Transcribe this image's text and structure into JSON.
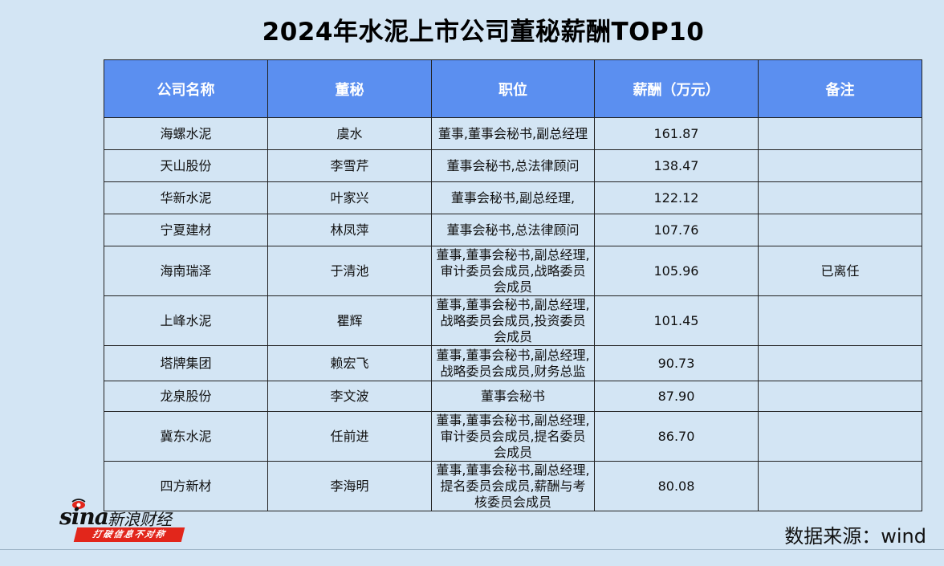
{
  "title": "2024年水泥上市公司董秘薪酬TOP10",
  "table": {
    "headers": [
      "公司名称",
      "董秘",
      "职位",
      "薪酬（万元）",
      "备注"
    ],
    "rows": [
      {
        "company": "海螺水泥",
        "secretary": "虞水",
        "position": [
          "董事,董事会秘书,副总经理"
        ],
        "salary": "161.87",
        "note": ""
      },
      {
        "company": "天山股份",
        "secretary": "李雪芹",
        "position": [
          "董事会秘书,总法律顾问"
        ],
        "salary": "138.47",
        "note": ""
      },
      {
        "company": "华新水泥",
        "secretary": "叶家兴",
        "position": [
          "董事会秘书,副总经理,"
        ],
        "salary": "122.12",
        "note": ""
      },
      {
        "company": "宁夏建材",
        "secretary": "林凤萍",
        "position": [
          "董事会秘书,总法律顾问"
        ],
        "salary": "107.76",
        "note": ""
      },
      {
        "company": "海南瑞泽",
        "secretary": "于清池",
        "position": [
          "董事,董事会秘书,副总经理,",
          "审计委员会成员,战略委员",
          "会成员"
        ],
        "salary": "105.96",
        "note": "已离任"
      },
      {
        "company": "上峰水泥",
        "secretary": "瞿辉",
        "position": [
          "董事,董事会秘书,副总经理,",
          "战略委员会成员,投资委员",
          "会成员"
        ],
        "salary": "101.45",
        "note": ""
      },
      {
        "company": "塔牌集团",
        "secretary": "赖宏飞",
        "position": [
          "董事,董事会秘书,副总经理,",
          "战略委员会成员,财务总监"
        ],
        "salary": "90.73",
        "note": ""
      },
      {
        "company": "龙泉股份",
        "secretary": "李文波",
        "position": [
          "董事会秘书"
        ],
        "salary": "87.90",
        "note": ""
      },
      {
        "company": "冀东水泥",
        "secretary": "任前进",
        "position": [
          "董事,董事会秘书,副总经理,",
          "审计委员会成员,提名委员",
          "会成员"
        ],
        "salary": "86.70",
        "note": ""
      },
      {
        "company": "四方新材",
        "secretary": "李海明",
        "position": [
          "董事,董事会秘书,副总经理,",
          "提名委员会成员,薪酬与考",
          "核委员会成员"
        ],
        "salary": "80.08",
        "note": ""
      }
    ]
  },
  "logo": {
    "brand": "sina",
    "brand_cn": "新浪财经",
    "slogan": "打破信息不对称",
    "accent": "#e2261b"
  },
  "source": "数据来源：wind",
  "colors": {
    "background": "#d3e5f4",
    "header": "#5b8ff0"
  }
}
